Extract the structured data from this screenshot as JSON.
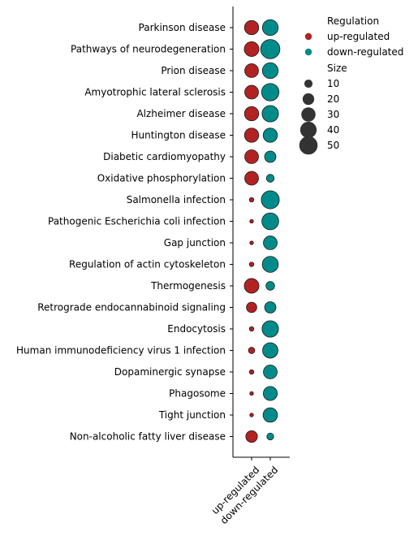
{
  "chart_data": {
    "type": "scatter",
    "title": "",
    "xlabel": "",
    "ylabel": "",
    "x": [
      "up-regulated",
      "down-regulated"
    ],
    "categories": [
      "Parkinson disease",
      "Pathways of neurodegeneration",
      "Prion disease",
      "Amyotrophic lateral sclerosis",
      "Alzheimer disease",
      "Huntington disease",
      "Diabetic cardiomyopathy",
      "Oxidative phosphorylation",
      "Salmonella infection",
      "Pathogenic Escherichia coli infection",
      "Gap junction",
      "Regulation of actin cytoskeleton",
      "Thermogenesis",
      "Retrograde endocannabinoid signaling",
      "Endocytosis",
      "Human immunodeficiency virus 1 infection",
      "Dopaminergic synapse",
      "Phagosome",
      "Tight junction",
      "Non-alcoholic fatty liver disease"
    ],
    "series": [
      {
        "name": "up-regulated",
        "color": "#b22222",
        "values": [
          30,
          32,
          28,
          28,
          30,
          30,
          28,
          28,
          3,
          2,
          2,
          3,
          32,
          16,
          3,
          6,
          3,
          2,
          2,
          20
        ]
      },
      {
        "name": "down-regulated",
        "color": "#008b8b",
        "values": [
          37,
          55,
          37,
          45,
          40,
          30,
          19,
          9,
          48,
          42,
          28,
          38,
          11,
          19,
          40,
          35,
          28,
          29,
          31,
          7
        ]
      }
    ],
    "legend": {
      "position": "top-right",
      "color_title": "Regulation",
      "size_title": "Size",
      "size_entries": [
        10,
        20,
        30,
        40,
        50
      ],
      "size_labels": [
        "10",
        "20",
        "30",
        "40",
        "50"
      ],
      "size_color": "#333333"
    },
    "grid": false
  }
}
